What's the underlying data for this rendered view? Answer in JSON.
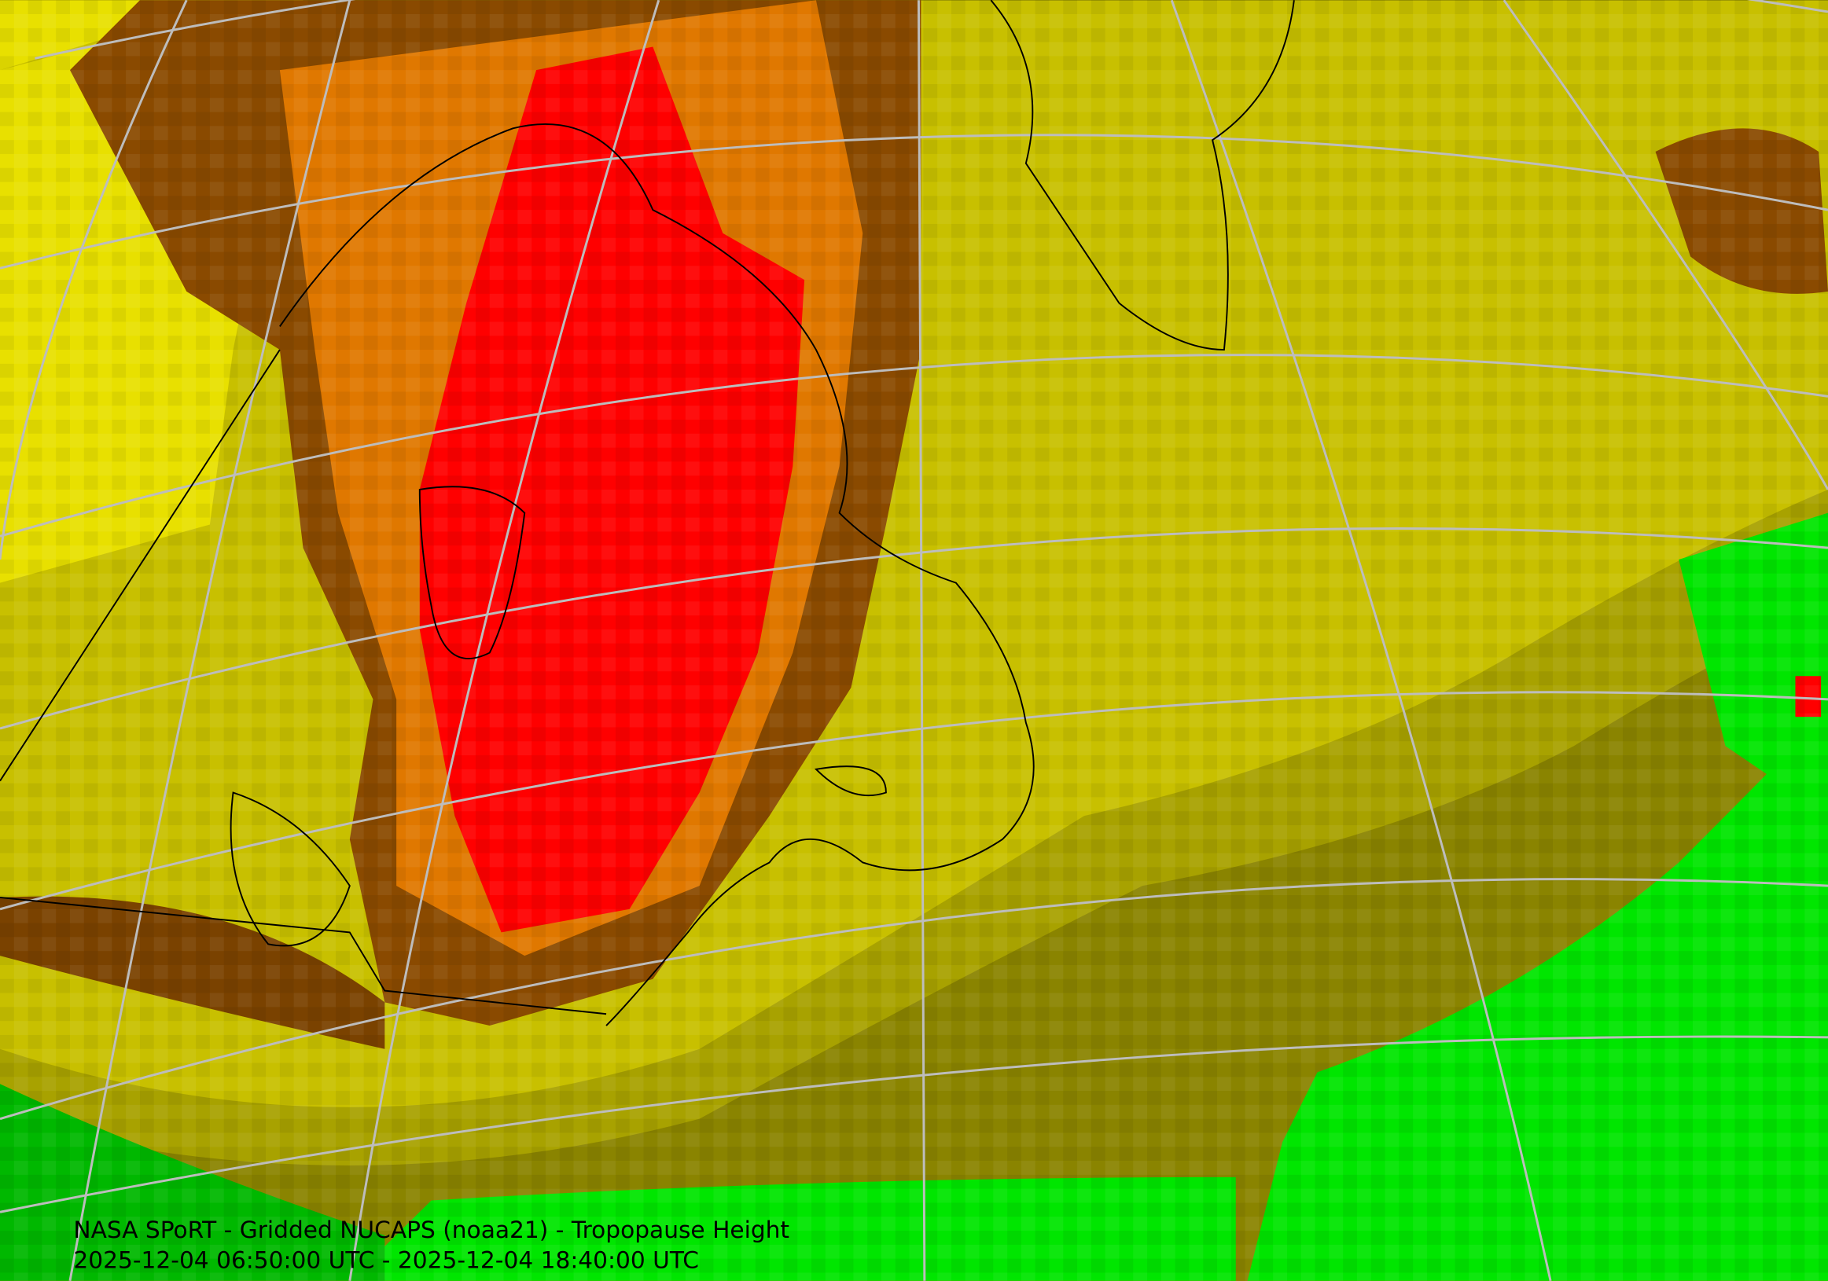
{
  "caption": {
    "title": "NASA SPoRT - Gridded NUCAPS (noaa21) - Tropopause Height",
    "time_range": "2025-12-04 06:50:00 UTC - 2025-12-04 18:40:00 UTC"
  }
}
